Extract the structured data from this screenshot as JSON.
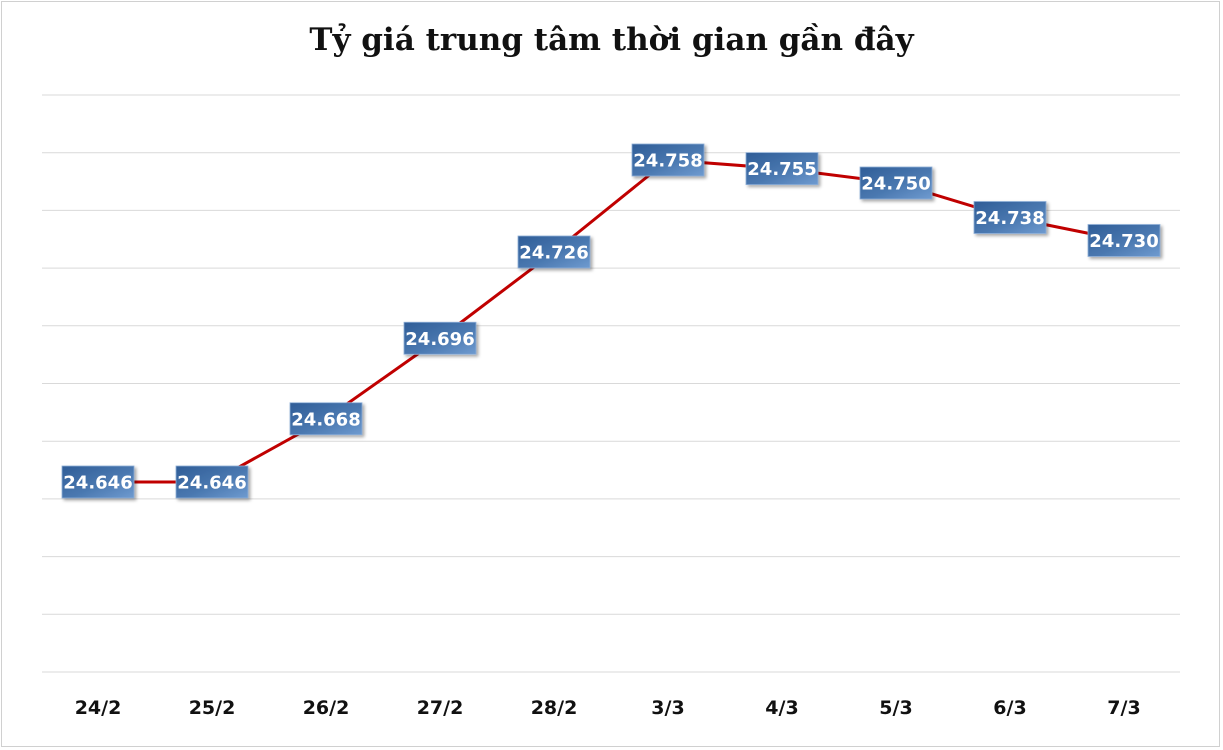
{
  "chart_data": {
    "type": "line",
    "title": "Tỷ giá trung tâm thời gian gần đây",
    "xlabel": "",
    "ylabel": "",
    "categories": [
      "24/2",
      "25/2",
      "26/2",
      "27/2",
      "28/2",
      "3/3",
      "4/3",
      "5/3",
      "6/3",
      "7/3"
    ],
    "series": [
      {
        "name": "Tỷ giá trung tâm",
        "values": [
          24.646,
          24.646,
          24.668,
          24.696,
          24.726,
          24.758,
          24.755,
          24.75,
          24.738,
          24.73
        ],
        "labels": [
          "24.646",
          "24.646",
          "24.668",
          "24.696",
          "24.726",
          "24.758",
          "24.755",
          "24.750",
          "24.738",
          "24.730"
        ],
        "color": "#c00000"
      }
    ],
    "ylim": [
      24.58,
      24.78
    ],
    "grid": true,
    "legend": "none",
    "label_box_color": "#4a78b0"
  }
}
